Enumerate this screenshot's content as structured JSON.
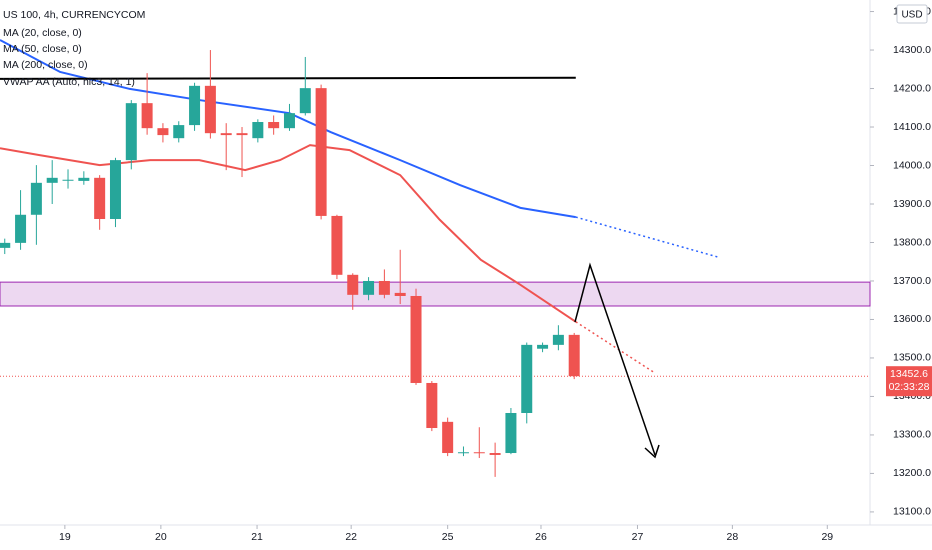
{
  "chart_data": {
    "type": "candlestick",
    "legend": [
      "US 100, 4h, CURRENCYCOM",
      "MA (20, close, 0)",
      "MA (50, close, 0)",
      "MA (200, close, 0)",
      "VWAP AA (Auto, hlc3, 14, 1)"
    ],
    "currency": "USD",
    "x": [
      0,
      1,
      2,
      3,
      4,
      5,
      6,
      7,
      8,
      9,
      10,
      11,
      12,
      13,
      14,
      15,
      16,
      17,
      18,
      19,
      20,
      21,
      22,
      23,
      24,
      25,
      26,
      27,
      28,
      29,
      30,
      31,
      32,
      33,
      34,
      35,
      36
    ],
    "open": [
      13786,
      13799,
      13872,
      13955,
      13962,
      13960,
      13968,
      13861,
      14014,
      14162,
      14097,
      14071,
      14105,
      14207,
      14084,
      14084,
      14071,
      14113,
      14097,
      14136,
      14201,
      13869,
      13716,
      13664,
      13700,
      13669,
      13661,
      13435,
      13334,
      13253,
      13255,
      13253,
      13253,
      13357,
      13524,
      13534,
      13560
    ],
    "high": [
      13810,
      13936,
      14001,
      14014,
      13990,
      13985,
      13975,
      14020,
      14170,
      14240,
      14110,
      14115,
      14215,
      14300,
      14110,
      14100,
      14120,
      14130,
      14160,
      14282,
      14210,
      13872,
      13720,
      13710,
      13730,
      13781,
      13680,
      13440,
      13345,
      13270,
      13320,
      13280,
      13370,
      13540,
      13540,
      13585,
      13565
    ],
    "low": [
      13770,
      13781,
      13794,
      13900,
      13940,
      13950,
      13833,
      13840,
      13990,
      14080,
      14060,
      14060,
      14090,
      14070,
      13988,
      13970,
      14060,
      14080,
      14090,
      14130,
      13860,
      13705,
      13625,
      13650,
      13655,
      13640,
      13430,
      13310,
      13245,
      13245,
      13240,
      13191,
      13250,
      13330,
      13515,
      13520,
      13445
    ],
    "close": [
      13799,
      13872,
      13955,
      13968,
      13963,
      13968,
      13861,
      14014,
      14162,
      14097,
      14079,
      14105,
      14207,
      14084,
      14079,
      14079,
      14113,
      14097,
      14136,
      14201,
      13869,
      13716,
      13664,
      13700,
      13664,
      13661,
      13435,
      13318,
      13253,
      13255,
      13253,
      13248,
      13357,
      13534,
      13534,
      13560,
      13452.6
    ],
    "up_color": "#26a69a",
    "down_color": "#ef5350",
    "lines": [
      {
        "color": "#2962ff",
        "style": "solid",
        "x": [
          -0.3,
          3.5,
          7.9,
          12.3,
          18,
          20.6,
          25,
          28.8,
          32.6,
          36.1
        ],
        "values": [
          14326,
          14243,
          14199,
          14170,
          14136,
          14087,
          14014,
          13949,
          13890,
          13866
        ]
      },
      {
        "color": "#2962ff",
        "style": "dotted",
        "x": [
          36.1,
          45.1
        ],
        "values": [
          13866,
          13762
        ]
      },
      {
        "color": "#ef5350",
        "style": "solid",
        "x": [
          -0.3,
          2.2,
          6,
          9.2,
          12.3,
          15.2,
          17.4,
          19.3,
          21.8,
          25,
          27.5,
          30.1,
          32.6,
          36.1
        ],
        "values": [
          14045,
          14027,
          14001,
          14014,
          14014,
          13988,
          14014,
          14053,
          14040,
          13975,
          13859,
          13755,
          13690,
          13594
        ]
      },
      {
        "color": "#ef5350",
        "style": "dotted",
        "x": [
          36.1,
          41.1
        ],
        "values": [
          13594,
          13461
        ]
      },
      {
        "color": "#000000",
        "style": "solid",
        "x": [
          -0.3,
          36.1
        ],
        "values": [
          14225,
          14228
        ]
      }
    ],
    "zone": [
      13635,
      13697
    ],
    "last_price": {
      "value": 13452.6,
      "label": "13452.6"
    },
    "countdown": "02:33:28",
    "xlim": [
      -0.3,
      54.7
    ],
    "ylim": [
      13066,
      14430
    ],
    "xticks": [
      {
        "value": 3.8,
        "label": "19"
      },
      {
        "value": 9.87,
        "label": "20"
      },
      {
        "value": 15.95,
        "label": "21"
      },
      {
        "value": 21.9,
        "label": "22"
      },
      {
        "value": 28,
        "label": "25"
      },
      {
        "value": 33.9,
        "label": "26"
      },
      {
        "value": 40,
        "label": "27"
      },
      {
        "value": 46,
        "label": "28"
      },
      {
        "value": 52,
        "label": "29"
      }
    ],
    "yticks": [
      {
        "value": 13100,
        "label": "13100.0"
      },
      {
        "value": 13200,
        "label": "13200.0"
      },
      {
        "value": 13300,
        "label": "13300.0"
      },
      {
        "value": 13400,
        "label": "13400.0"
      },
      {
        "value": 13500,
        "label": "13500.0"
      },
      {
        "value": 13600,
        "label": "13600.0"
      },
      {
        "value": 13700,
        "label": "13700.0"
      },
      {
        "value": 13800,
        "label": "13800.0"
      },
      {
        "value": 13900,
        "label": "13900.0"
      },
      {
        "value": 14000,
        "label": "14000.0"
      },
      {
        "value": 14100,
        "label": "14100.0"
      },
      {
        "value": 14200,
        "label": "14200.0"
      },
      {
        "value": 14300,
        "label": "14300.0"
      },
      {
        "value": 14400,
        "label": "14400.0"
      }
    ],
    "grid": false
  }
}
